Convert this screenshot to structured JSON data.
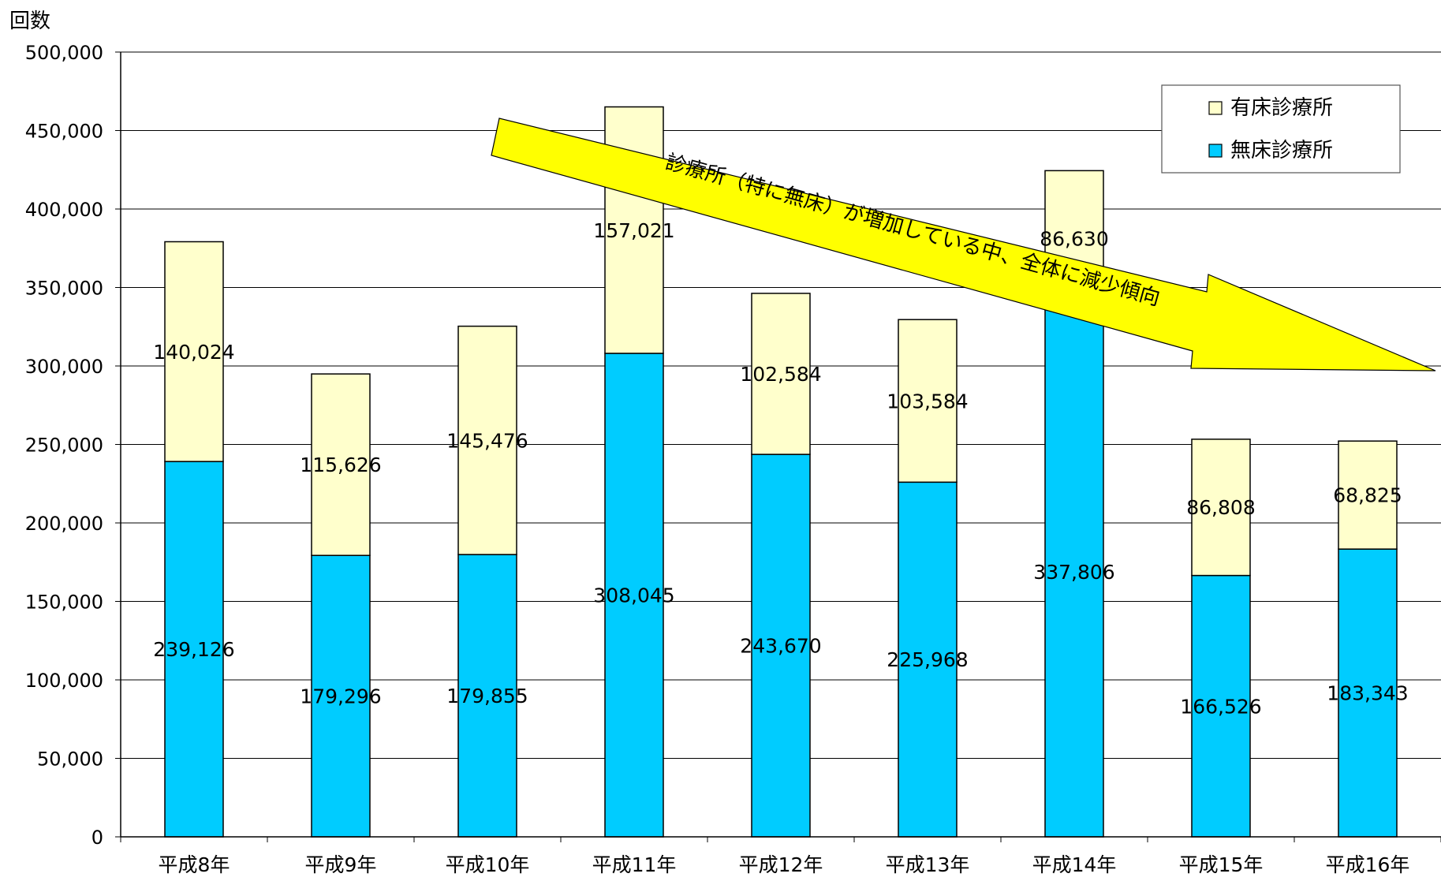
{
  "chart_data": {
    "type": "bar",
    "stacked": true,
    "ylabel": "回数",
    "ylim": [
      0,
      500000
    ],
    "yticks": [
      "0",
      "50,000",
      "100,000",
      "150,000",
      "200,000",
      "250,000",
      "300,000",
      "350,000",
      "400,000",
      "450,000",
      "500,000"
    ],
    "categories": [
      "平成8年",
      "平成9年",
      "平成10年",
      "平成11年",
      "平成12年",
      "平成13年",
      "平成14年",
      "平成15年",
      "平成16年"
    ],
    "series": [
      {
        "name": "無床診療所",
        "color": "#00ccff",
        "values": [
          239126,
          179296,
          179855,
          308045,
          243670,
          225968,
          337806,
          166526,
          183343
        ],
        "labels": [
          "239,126",
          "179,296",
          "179,855",
          "308,045",
          "243,670",
          "225,968",
          "337,806",
          "166,526",
          "183,343"
        ]
      },
      {
        "name": "有床診療所",
        "color": "#ffffcc",
        "values": [
          140024,
          115626,
          145476,
          157021,
          102584,
          103584,
          86630,
          86808,
          68825
        ],
        "labels": [
          "140,024",
          "115,626",
          "145,476",
          "157,021",
          "102,584",
          "103,584",
          "86,630",
          "86,808",
          "68,825"
        ]
      }
    ],
    "legend": {
      "position": "top-right",
      "order": [
        "有床診療所",
        "無床診療所"
      ]
    },
    "grid": true,
    "annotation": {
      "text": "診療所（特に無床）が増加している中、全体に減少傾向",
      "color": "#ffff00"
    }
  }
}
